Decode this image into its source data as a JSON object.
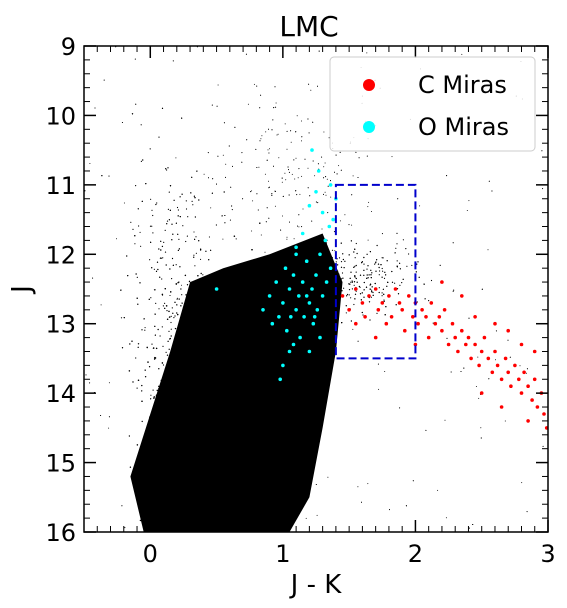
{
  "chart_data": {
    "type": "scatter",
    "title": "LMC",
    "xlabel": "J - K",
    "ylabel": "J",
    "xlim": [
      -0.5,
      3.0
    ],
    "ylim": [
      16,
      9
    ],
    "y_inverted": true,
    "grid": false,
    "legend_position": "top-right",
    "x_ticks": [
      0,
      1,
      2,
      3
    ],
    "y_ticks": [
      9,
      10,
      11,
      12,
      13,
      14,
      15,
      16
    ],
    "selection_box": {
      "x": [
        1.4,
        2.0
      ],
      "y": [
        11.0,
        13.5
      ],
      "color": "#0000cc",
      "style": "dashed"
    },
    "series": [
      {
        "name": "C Miras",
        "color": "#ff0000",
        "points": [
          [
            1.45,
            12.6
          ],
          [
            1.5,
            12.8
          ],
          [
            1.55,
            12.5
          ],
          [
            1.6,
            12.7
          ],
          [
            1.62,
            12.9
          ],
          [
            1.65,
            12.6
          ],
          [
            1.7,
            12.5
          ],
          [
            1.72,
            12.8
          ],
          [
            1.75,
            12.7
          ],
          [
            1.78,
            13.0
          ],
          [
            1.8,
            12.6
          ],
          [
            1.82,
            12.9
          ],
          [
            1.85,
            12.5
          ],
          [
            1.88,
            12.7
          ],
          [
            1.9,
            12.8
          ],
          [
            1.92,
            13.1
          ],
          [
            1.95,
            12.6
          ],
          [
            1.98,
            12.9
          ],
          [
            2.0,
            12.7
          ],
          [
            2.02,
            13.0
          ],
          [
            2.05,
            12.8
          ],
          [
            2.08,
            12.9
          ],
          [
            2.1,
            13.2
          ],
          [
            2.12,
            12.7
          ],
          [
            2.15,
            13.0
          ],
          [
            2.18,
            12.9
          ],
          [
            2.2,
            13.1
          ],
          [
            2.22,
            12.8
          ],
          [
            2.25,
            13.3
          ],
          [
            2.28,
            13.0
          ],
          [
            2.3,
            13.2
          ],
          [
            2.32,
            13.4
          ],
          [
            2.35,
            13.1
          ],
          [
            2.38,
            13.3
          ],
          [
            2.4,
            13.2
          ],
          [
            2.42,
            13.5
          ],
          [
            2.45,
            13.3
          ],
          [
            2.48,
            13.6
          ],
          [
            2.5,
            13.4
          ],
          [
            2.52,
            13.2
          ],
          [
            2.55,
            13.5
          ],
          [
            2.58,
            13.7
          ],
          [
            2.6,
            13.4
          ],
          [
            2.62,
            13.6
          ],
          [
            2.65,
            13.8
          ],
          [
            2.68,
            13.5
          ],
          [
            2.7,
            13.7
          ],
          [
            2.72,
            13.9
          ],
          [
            2.75,
            13.6
          ],
          [
            2.78,
            13.8
          ],
          [
            2.8,
            14.0
          ],
          [
            2.82,
            13.7
          ],
          [
            2.85,
            13.9
          ],
          [
            2.88,
            14.1
          ],
          [
            2.9,
            13.8
          ],
          [
            2.92,
            14.2
          ],
          [
            2.95,
            14.0
          ],
          [
            2.97,
            14.3
          ],
          [
            2.99,
            14.5
          ],
          [
            2.6,
            13.0
          ],
          [
            2.7,
            13.1
          ],
          [
            2.45,
            12.9
          ],
          [
            2.35,
            12.6
          ],
          [
            2.2,
            12.4
          ],
          [
            2.8,
            13.3
          ],
          [
            2.9,
            13.4
          ],
          [
            2.5,
            14.0
          ],
          [
            2.65,
            14.2
          ],
          [
            2.0,
            13.3
          ],
          [
            1.7,
            13.2
          ],
          [
            1.55,
            13.0
          ],
          [
            2.85,
            14.4
          ]
        ]
      },
      {
        "name": "O Miras",
        "color": "#00ffff",
        "points": [
          [
            0.85,
            12.8
          ],
          [
            0.9,
            12.6
          ],
          [
            0.92,
            13.0
          ],
          [
            0.95,
            12.4
          ],
          [
            0.97,
            12.9
          ],
          [
            1.0,
            12.7
          ],
          [
            1.02,
            12.2
          ],
          [
            1.03,
            13.1
          ],
          [
            1.05,
            12.5
          ],
          [
            1.06,
            12.9
          ],
          [
            1.08,
            12.3
          ],
          [
            1.1,
            12.8
          ],
          [
            1.12,
            12.6
          ],
          [
            1.13,
            13.2
          ],
          [
            1.15,
            12.4
          ],
          [
            1.16,
            12.9
          ],
          [
            1.18,
            12.1
          ],
          [
            1.2,
            12.7
          ],
          [
            1.22,
            12.5
          ],
          [
            1.23,
            13.0
          ],
          [
            1.25,
            12.3
          ],
          [
            1.26,
            12.8
          ],
          [
            1.28,
            12.0
          ],
          [
            1.3,
            12.6
          ],
          [
            1.32,
            11.8
          ],
          [
            1.33,
            12.4
          ],
          [
            1.35,
            11.6
          ],
          [
            1.36,
            12.2
          ],
          [
            1.38,
            11.5
          ],
          [
            1.2,
            11.3
          ],
          [
            1.25,
            11.1
          ],
          [
            1.3,
            11.4
          ],
          [
            1.15,
            11.7
          ],
          [
            1.1,
            11.9
          ],
          [
            1.05,
            13.4
          ],
          [
            1.0,
            13.6
          ],
          [
            0.98,
            13.8
          ],
          [
            1.08,
            13.3
          ],
          [
            1.2,
            13.4
          ],
          [
            1.28,
            13.2
          ],
          [
            1.22,
            10.5
          ],
          [
            1.27,
            10.8
          ],
          [
            1.4,
            11.2
          ],
          [
            1.36,
            11.0
          ],
          [
            0.5,
            12.5
          ],
          [
            1.1,
            12.0
          ],
          [
            1.18,
            12.6
          ],
          [
            1.24,
            12.9
          ]
        ]
      }
    ],
    "background_population": {
      "color": "#000000",
      "description_visible": false
    }
  }
}
